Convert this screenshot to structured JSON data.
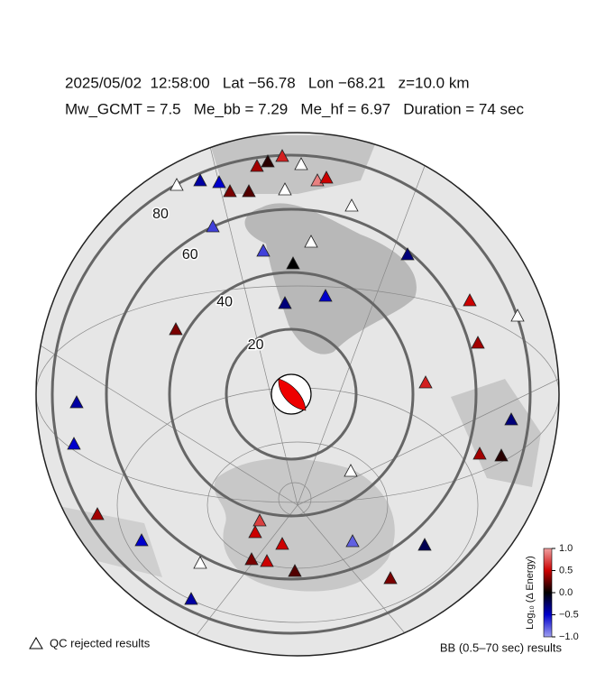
{
  "header": {
    "line1": "2025/05/02  12:58:00   Lat −56.78   Lon −68.21   z=10.0 km",
    "line2": "Mw_GCMT = 7.5   Me_bb = 7.29   Me_hf = 6.97   Duration = 74 sec"
  },
  "map": {
    "ring_labels": [
      "20",
      "40",
      "60",
      "80"
    ],
    "stations": [
      0.6,
      0.1,
      0.4,
      null,
      0.9,
      0.5,
      null,
      -0.4,
      -0.5,
      0.3,
      0.2,
      null,
      null,
      -0.7,
      -0.7,
      null,
      -0.3,
      0.0,
      -0.5,
      -0.3,
      0.5,
      null,
      0.3,
      0.4,
      0.6,
      -0.4,
      -0.3,
      -0.5,
      0.4,
      0.1,
      null,
      0.4,
      0.7,
      0.5,
      -0.5,
      0.5,
      -0.8,
      -0.2,
      null,
      0.3,
      0.5,
      0.2,
      0.3,
      -0.4
    ]
  },
  "legend": {
    "qc_label": "QC rejected results",
    "bb_label": "BB (0.5–70 sec) results"
  },
  "colorbar": {
    "label": "Log₁₀ (Δ Energy)",
    "lim": [
      -1,
      1
    ],
    "ticks": [
      {
        "value": 1,
        "label": "1.0"
      },
      {
        "value": 0.5,
        "label": "0.5"
      },
      {
        "value": 0,
        "label": "0.0"
      },
      {
        "value": -0.5,
        "label": "−0.5"
      },
      {
        "value": -1,
        "label": "−1.0"
      }
    ]
  }
}
